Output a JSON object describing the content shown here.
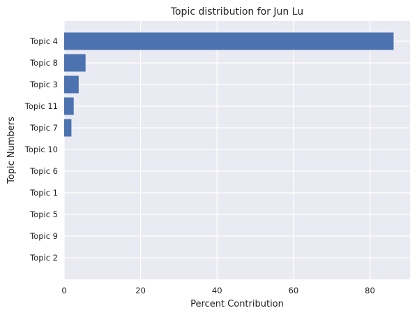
{
  "chart_data": {
    "type": "bar",
    "orientation": "horizontal",
    "title": "Topic distribution for Jun Lu",
    "xlabel": "Percent Contribution",
    "ylabel": "Topic Numbers",
    "categories": [
      "Topic 4",
      "Topic 8",
      "Topic 3",
      "Topic 11",
      "Topic 7",
      "Topic 10",
      "Topic 6",
      "Topic 1",
      "Topic 5",
      "Topic 9",
      "Topic 2"
    ],
    "values": [
      86.2,
      5.6,
      3.8,
      2.5,
      1.9,
      0,
      0,
      0,
      0,
      0,
      0
    ],
    "xlim": [
      0,
      90.5
    ],
    "xticks": [
      0,
      20,
      40,
      60,
      80
    ],
    "grid": true,
    "colors": {
      "bar": "#4c72b0",
      "background": "#eaeaf2",
      "grid": "#ffffff"
    }
  }
}
